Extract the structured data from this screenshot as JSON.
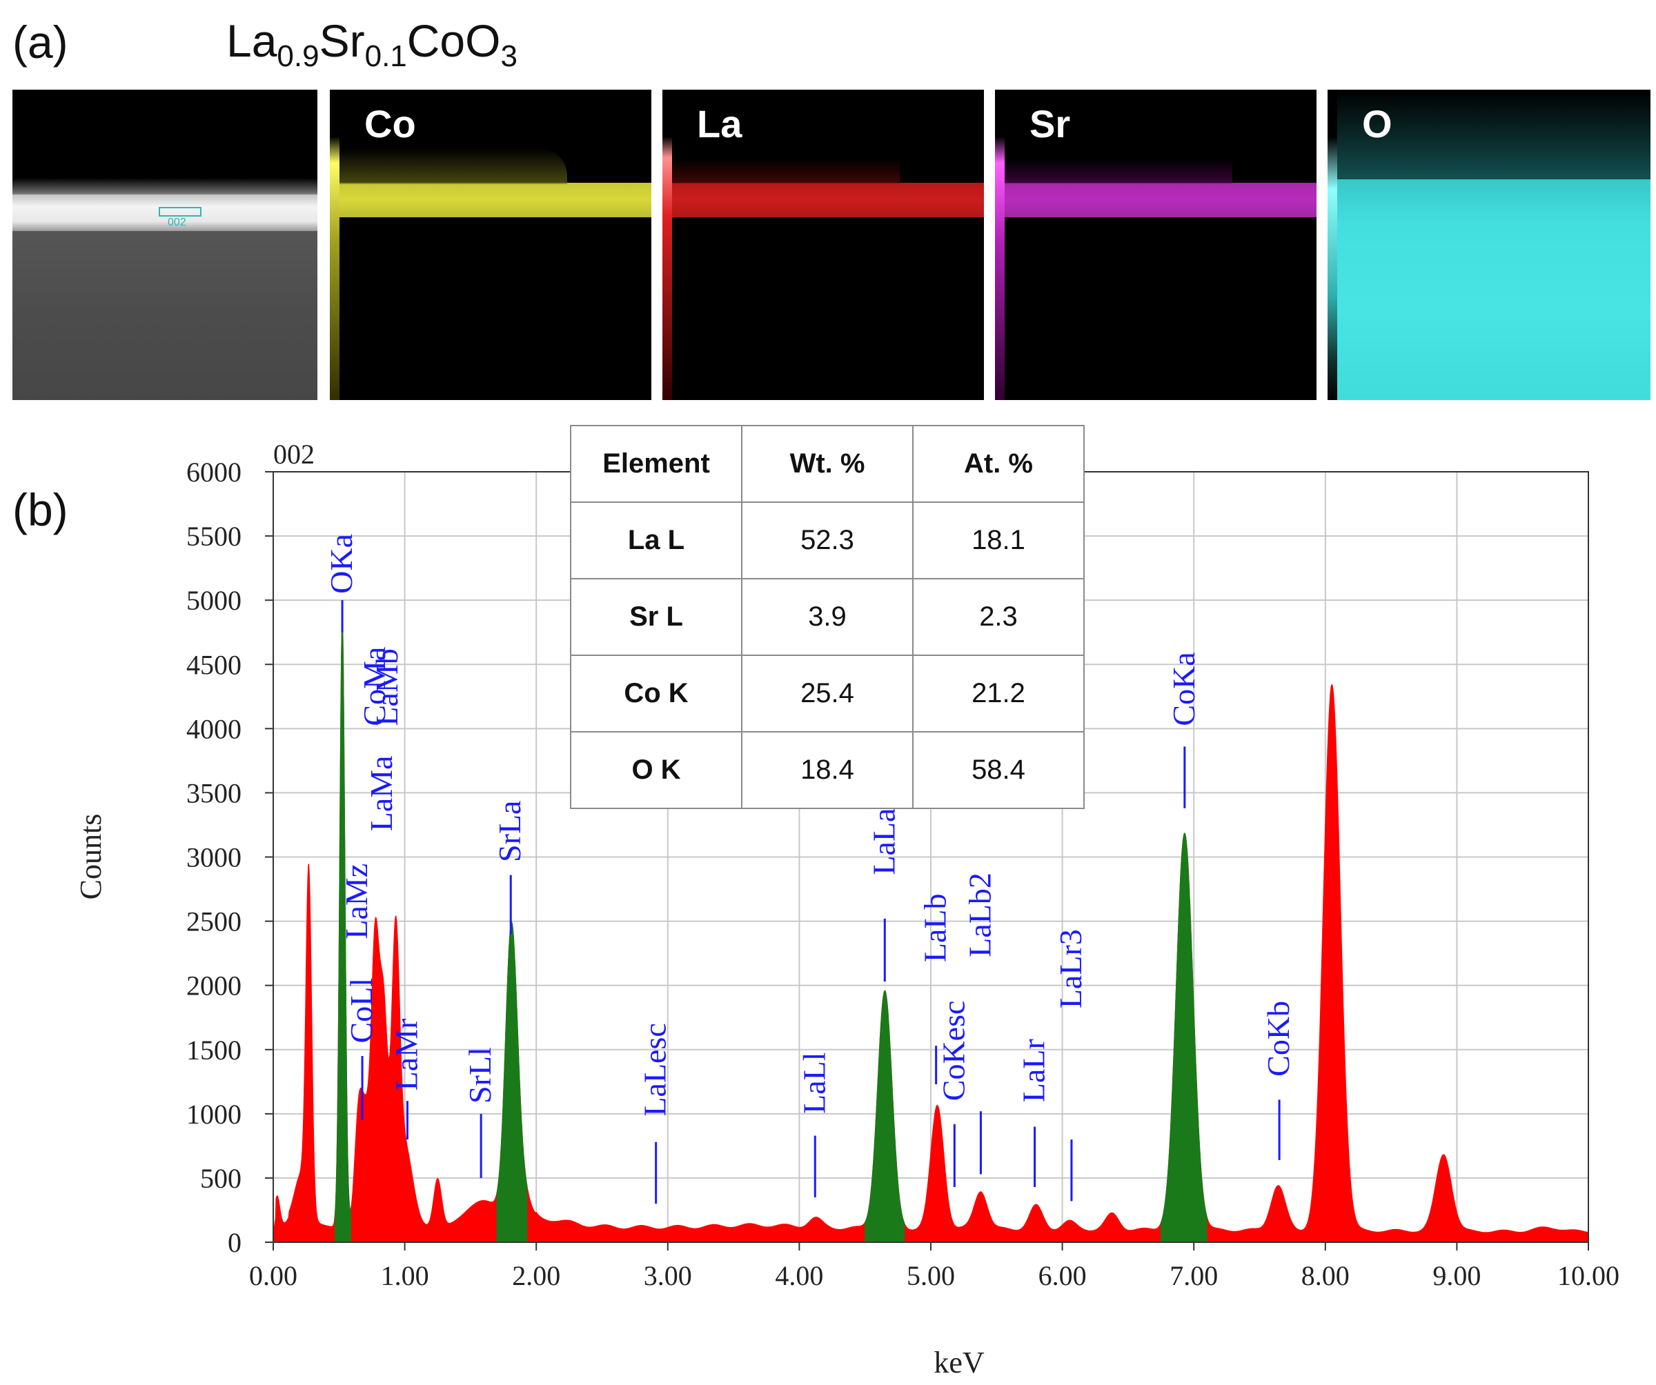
{
  "panel_labels": {
    "a": "(a)",
    "b": "(b)"
  },
  "formula": {
    "base1": "La",
    "sub1": "0.9",
    "base2": "Sr",
    "sub2": "0.1",
    "base3": "CoO",
    "sub3": "3"
  },
  "haadf": {
    "box_label": "002"
  },
  "maps": [
    {
      "label": "Co",
      "color": "#e8e838"
    },
    {
      "label": "La",
      "color": "#e02020"
    },
    {
      "label": "Sr",
      "color": "#d030d8"
    },
    {
      "label": "O",
      "color": "#38e0e0"
    }
  ],
  "table": {
    "headers": [
      "Element",
      "Wt. %",
      "At. %"
    ],
    "rows": [
      [
        "La L",
        "52.3",
        "18.1"
      ],
      [
        "Sr L",
        "3.9",
        "2.3"
      ],
      [
        "Co K",
        "25.4",
        "21.2"
      ],
      [
        "O K",
        "18.4",
        "58.4"
      ]
    ]
  },
  "chart_data": {
    "type": "area",
    "title": "002",
    "xlabel": "keV",
    "ylabel": "Counts",
    "xlim": [
      0,
      10
    ],
    "ylim": [
      0,
      6000
    ],
    "x_ticks": [
      0,
      1,
      2,
      3,
      4,
      5,
      6,
      7,
      8,
      9,
      10
    ],
    "x_tick_labels": [
      "0.00",
      "1.00",
      "2.00",
      "3.00",
      "4.00",
      "5.00",
      "6.00",
      "7.00",
      "8.00",
      "9.00",
      "10.00"
    ],
    "y_ticks": [
      0,
      500,
      1000,
      1500,
      2000,
      2500,
      3000,
      3500,
      4000,
      4500,
      5000,
      5500,
      6000
    ],
    "y_tick_labels": [
      "0",
      "500",
      "1000",
      "1500",
      "2000",
      "2500",
      "3000",
      "3500",
      "4000",
      "4500",
      "5000",
      "5500",
      "6000"
    ],
    "grid": true,
    "colors": {
      "spectrum": "#ff0000",
      "identified": "#1a7a1a",
      "marker": "#1a1aff"
    },
    "background": 110,
    "peaks": [
      {
        "keV": 0.03,
        "counts": 230,
        "width": 0.02
      },
      {
        "keV": 0.27,
        "counts": 2620,
        "width": 0.022
      },
      {
        "keV": 0.21,
        "counts": 350,
        "width": 0.05
      },
      {
        "keV": 0.525,
        "counts": 4750,
        "width": 0.02
      },
      {
        "keV": 0.65,
        "counts": 880,
        "width": 0.03
      },
      {
        "keV": 0.705,
        "counts": 700,
        "width": 0.03
      },
      {
        "keV": 0.775,
        "counts": 2150,
        "width": 0.03
      },
      {
        "keV": 0.84,
        "counts": 1600,
        "width": 0.03
      },
      {
        "keV": 0.93,
        "counts": 2050,
        "width": 0.03
      },
      {
        "keV": 1.0,
        "counts": 600,
        "width": 0.06
      },
      {
        "keV": 1.25,
        "counts": 380,
        "width": 0.03
      },
      {
        "keV": 1.6,
        "counts": 150,
        "width": 0.12
      },
      {
        "keV": 1.81,
        "counts": 2150,
        "width": 0.045
      },
      {
        "keV": 1.88,
        "counts": 300,
        "width": 0.06
      },
      {
        "keV": 2.05,
        "counts": 60,
        "width": 0.2
      },
      {
        "keV": 3.7,
        "counts": 20,
        "width": 0.3
      },
      {
        "keV": 4.12,
        "counts": 70,
        "width": 0.05
      },
      {
        "keV": 4.65,
        "counts": 1850,
        "width": 0.055
      },
      {
        "keV": 5.05,
        "counts": 960,
        "width": 0.05
      },
      {
        "keV": 5.38,
        "counts": 300,
        "width": 0.05
      },
      {
        "keV": 5.8,
        "counts": 180,
        "width": 0.05
      },
      {
        "keV": 6.05,
        "counts": 60,
        "width": 0.05
      },
      {
        "keV": 6.38,
        "counts": 120,
        "width": 0.05
      },
      {
        "keV": 6.93,
        "counts": 3080,
        "width": 0.065
      },
      {
        "keV": 7.64,
        "counts": 350,
        "width": 0.055
      },
      {
        "keV": 8.05,
        "counts": 4250,
        "width": 0.065
      },
      {
        "keV": 8.9,
        "counts": 600,
        "width": 0.06
      },
      {
        "keV": 9.7,
        "counts": 30,
        "width": 0.1
      }
    ],
    "identified_ranges": [
      [
        0.47,
        0.59
      ],
      [
        1.7,
        1.93
      ],
      [
        4.5,
        4.8
      ],
      [
        6.75,
        7.1
      ]
    ],
    "line_markers": [
      {
        "label": "OKa",
        "keV": 0.525,
        "line_low": 4750,
        "line_high": 5000,
        "text_bottom": 5050
      },
      {
        "label": "CoMa",
        "keV": 0.776,
        "line_low": 2700,
        "line_high": 2700,
        "text_bottom": 4020
      },
      {
        "label": "LaMb",
        "keV": 0.87,
        "line_low": 2700,
        "line_high": 2700,
        "text_bottom": 4020
      },
      {
        "label": "LaMa",
        "keV": 0.83,
        "line_low": 2700,
        "line_high": 2700,
        "text_bottom": 3200
      },
      {
        "label": "LaMz",
        "keV": 0.64,
        "line_low": 2700,
        "line_high": 2700,
        "text_bottom": 2360
      },
      {
        "label": "CoLl",
        "keV": 0.677,
        "line_low": 950,
        "line_high": 1450,
        "text_bottom": 1550
      },
      {
        "label": "LaMr",
        "keV": 1.02,
        "line_low": 800,
        "line_high": 1100,
        "text_bottom": 1180
      },
      {
        "label": "SrLl",
        "keV": 1.58,
        "line_low": 500,
        "line_high": 1000,
        "text_bottom": 1080
      },
      {
        "label": "SrLa",
        "keV": 1.806,
        "line_low": 2400,
        "line_high": 2860,
        "text_bottom": 2960
      },
      {
        "label": "LaLesc",
        "keV": 2.91,
        "line_low": 300,
        "line_high": 780,
        "text_bottom": 980
      },
      {
        "label": "LaLl",
        "keV": 4.12,
        "line_low": 350,
        "line_high": 830,
        "text_bottom": 1000
      },
      {
        "label": "LaLa",
        "keV": 4.65,
        "line_low": 2030,
        "line_high": 2520,
        "text_bottom": 2860
      },
      {
        "label": "LaLb",
        "keV": 5.04,
        "line_low": 1230,
        "line_high": 1530,
        "text_bottom": 2180
      },
      {
        "label": "CoKesc",
        "keV": 5.18,
        "line_low": 430,
        "line_high": 920,
        "text_bottom": 1100
      },
      {
        "label": "LaLb2",
        "keV": 5.38,
        "line_low": 530,
        "line_high": 1020,
        "text_bottom": 2220
      },
      {
        "label": "LaLr",
        "keV": 5.79,
        "line_low": 430,
        "line_high": 900,
        "text_bottom": 1090
      },
      {
        "label": "LaLr3",
        "keV": 6.07,
        "line_low": 320,
        "line_high": 800,
        "text_bottom": 1820
      },
      {
        "label": "CoKa",
        "keV": 6.93,
        "line_low": 3380,
        "line_high": 3860,
        "text_bottom": 4020
      },
      {
        "label": "CoKb",
        "keV": 7.65,
        "line_low": 640,
        "line_high": 1110,
        "text_bottom": 1290
      }
    ]
  }
}
